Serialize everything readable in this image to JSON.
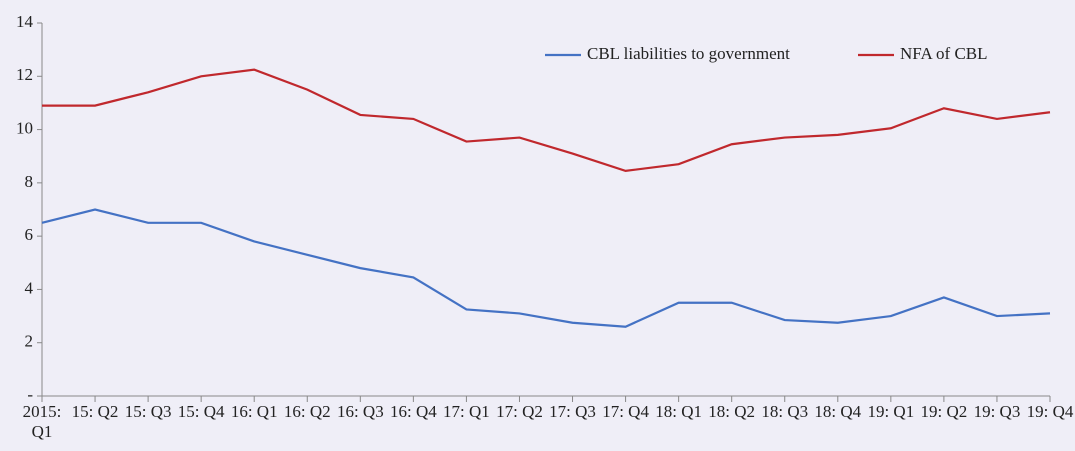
{
  "chart_data": {
    "type": "line",
    "categories": [
      "2015: Q1",
      "15: Q2",
      "15: Q3",
      "15: Q4",
      "16: Q1",
      "16: Q2",
      "16: Q3",
      "16: Q4",
      "17: Q1",
      "17: Q2",
      "17: Q3",
      "17: Q4",
      "18: Q1",
      "18: Q2",
      "18: Q3",
      "18: Q4",
      "19: Q1",
      "19: Q2",
      "19: Q3",
      "19: Q4"
    ],
    "series": [
      {
        "name": "CBL liabilities to government",
        "color": "#4472c4",
        "values": [
          6.5,
          7.0,
          6.5,
          6.5,
          5.8,
          5.3,
          4.8,
          4.45,
          3.25,
          3.1,
          2.75,
          2.6,
          3.5,
          3.5,
          2.85,
          2.75,
          3.0,
          3.7,
          3.0,
          3.1
        ]
      },
      {
        "name": "NFA of CBL",
        "color": "#c0282d",
        "values": [
          10.9,
          10.9,
          11.4,
          12.0,
          12.25,
          11.5,
          10.55,
          10.4,
          9.55,
          9.7,
          9.1,
          8.45,
          8.7,
          9.45,
          9.7,
          9.8,
          10.05,
          10.8,
          10.4,
          10.65
        ]
      }
    ],
    "ylim": [
      0,
      14
    ],
    "yticks": [
      {
        "value": 0,
        "label": "-"
      },
      2,
      4,
      6,
      8,
      10,
      12,
      14
    ],
    "legend": "upper right"
  }
}
